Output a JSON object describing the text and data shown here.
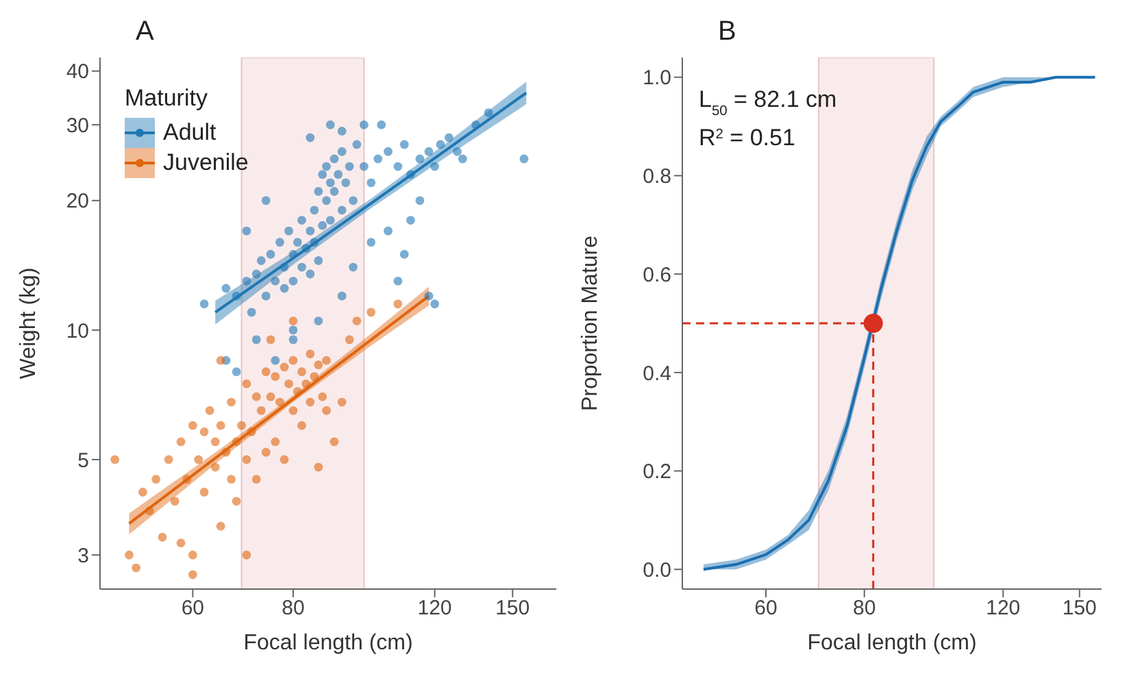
{
  "chart_data": [
    {
      "type": "scatter",
      "title": "A",
      "xlabel": "Focal length (cm)",
      "ylabel": "Weight (kg)",
      "legend_title": "Maturity",
      "legend": "top left",
      "log": "xy",
      "xlim": [
        46,
        170
      ],
      "xticks": [
        60,
        80,
        120,
        150
      ],
      "ylim": [
        2.5,
        43
      ],
      "yticks": [
        3,
        5,
        10,
        20,
        30,
        40
      ],
      "bands": [
        {
          "axis": "x",
          "from": 69,
          "to": 98,
          "color": "#f7e6e6"
        }
      ],
      "series": [
        {
          "name": "Adult",
          "marker": "circle",
          "color": "#1f77b4",
          "x": [
            62,
            66,
            68,
            70,
            71,
            72,
            73,
            74,
            75,
            76,
            77,
            78,
            78,
            79,
            80,
            80,
            81,
            82,
            82,
            83,
            84,
            84,
            85,
            85,
            86,
            86,
            87,
            87,
            88,
            88,
            89,
            89,
            90,
            90,
            91,
            92,
            92,
            93,
            94,
            95,
            96,
            98,
            100,
            102,
            105,
            108,
            110,
            112,
            115,
            118,
            120,
            122,
            125,
            128,
            130,
            135,
            140,
            155,
            72,
            76,
            80,
            86,
            92,
            95,
            100,
            105,
            108,
            110,
            112,
            115,
            118,
            120,
            84,
            92,
            98,
            74,
            70,
            66,
            68,
            80,
            89,
            103
          ],
          "values": [
            11.5,
            12.5,
            12,
            13,
            11,
            13.5,
            14.5,
            12,
            15,
            13,
            16,
            14,
            12.5,
            17,
            15,
            13,
            16,
            14,
            18,
            15.5,
            17,
            13.5,
            16,
            19,
            14.5,
            21,
            17.5,
            23,
            20,
            24,
            22,
            18,
            25,
            21,
            23,
            19,
            26,
            22,
            24,
            20,
            27,
            24,
            22,
            25,
            26,
            24,
            27,
            23,
            25,
            26,
            24,
            27,
            28,
            26,
            25,
            30,
            32,
            25,
            9.5,
            8.5,
            10,
            10.5,
            12,
            14,
            16,
            17,
            13,
            15,
            18,
            20,
            12,
            11.5,
            28,
            29,
            30,
            20,
            17,
            8.5,
            8,
            9.5,
            30,
            30
          ]
        },
        {
          "name": "Juvenile",
          "marker": "circle",
          "color": "#e0650f",
          "x": [
            48,
            50,
            51,
            52,
            53,
            54,
            55,
            56,
            57,
            58,
            58,
            59,
            60,
            60,
            61,
            62,
            62,
            63,
            64,
            64,
            65,
            65,
            66,
            67,
            67,
            68,
            68,
            69,
            70,
            70,
            71,
            72,
            72,
            73,
            74,
            74,
            75,
            76,
            76,
            77,
            78,
            78,
            79,
            80,
            80,
            81,
            82,
            82,
            83,
            84,
            84,
            85,
            86,
            87,
            88,
            88,
            86,
            90,
            92,
            94,
            96,
            100,
            108,
            70,
            60,
            75,
            80,
            65
          ],
          "values": [
            5,
            3,
            2.8,
            4.2,
            3.8,
            4.5,
            3.3,
            5,
            4,
            3.2,
            5.5,
            4.5,
            6,
            3,
            5,
            4.2,
            5.8,
            6.5,
            4.8,
            5.5,
            3.5,
            6,
            5.2,
            4.5,
            6.8,
            5.5,
            4,
            6,
            5,
            7.5,
            5.8,
            4.5,
            7,
            6.5,
            5.2,
            8,
            7,
            5.5,
            7.8,
            6.8,
            8.2,
            5,
            7.5,
            6.5,
            8.5,
            7.2,
            8,
            6,
            7.5,
            8.8,
            6.8,
            7.8,
            8.3,
            7,
            8.5,
            6.5,
            4.8,
            5.5,
            6.8,
            9.5,
            10.5,
            11,
            11.5,
            3,
            2.7,
            9.5,
            10.5,
            8.5
          ]
        },
        {
          "type": "line",
          "color": "#1f77b4",
          "x": [
            64,
            80,
            100,
            125,
            156
          ],
          "values": [
            11,
            14.7,
            19.7,
            26.5,
            35.6
          ],
          "lower": [
            10.3,
            14.2,
            19.2,
            25.5,
            33.5
          ],
          "upper": [
            11.7,
            15.2,
            20.2,
            27.5,
            37.8
          ]
        },
        {
          "type": "line",
          "color": "#e0650f",
          "x": [
            50,
            65,
            80,
            100,
            118
          ],
          "values": [
            3.55,
            5.15,
            6.92,
            9.49,
            12
          ],
          "lower": [
            3.35,
            5,
            6.8,
            9.2,
            11.4
          ],
          "upper": [
            3.75,
            5.3,
            7.05,
            9.8,
            12.6
          ]
        }
      ]
    },
    {
      "type": "line",
      "title": "B",
      "xlabel": "Focal length (cm)",
      "ylabel": "Proportion Mature",
      "log": "x",
      "xlim": [
        47,
        160
      ],
      "xticks": [
        60,
        80,
        120,
        150
      ],
      "ylim": [
        -0.04,
        1.04
      ],
      "yticks": [
        {
          "value": 0,
          "label": "0.0"
        },
        {
          "value": 0.2,
          "label": "0.2"
        },
        {
          "value": 0.4,
          "label": "0.4"
        },
        {
          "value": 0.6,
          "label": "0.6"
        },
        {
          "value": 0.8,
          "label": "0.8"
        },
        {
          "value": 1,
          "label": "1.0"
        }
      ],
      "annotations": [
        "L$_{50}$ = 82.1 cm",
        "R$^{2}$ = 0.51"
      ],
      "bands": [
        {
          "axis": "x",
          "from": 70,
          "to": 98,
          "color": "#f7e6e6"
        }
      ],
      "ref_lines": [
        {
          "axis": "x",
          "value": 82.1,
          "color": "#d7301f",
          "line_style": "dashed"
        },
        {
          "axis": "y",
          "value": 0.5,
          "color": "#d7301f",
          "line_style": "dashed"
        }
      ],
      "series": [
        {
          "color": "#1a6faf",
          "x": [
            50,
            55,
            60,
            64,
            68,
            72,
            76,
            80,
            84,
            88,
            92,
            96,
            100,
            105,
            110,
            120,
            130,
            140,
            157
          ],
          "values": [
            0,
            0.01,
            0.03,
            0.06,
            0.1,
            0.18,
            0.29,
            0.43,
            0.57,
            0.69,
            0.79,
            0.86,
            0.91,
            0.94,
            0.97,
            0.99,
            0.99,
            1,
            1
          ],
          "lower": [
            0,
            0,
            0.02,
            0.05,
            0.08,
            0.16,
            0.27,
            0.41,
            0.55,
            0.67,
            0.77,
            0.84,
            0.9,
            0.93,
            0.96,
            0.98,
            0.99,
            1,
            1
          ],
          "upper": [
            0.01,
            0.02,
            0.04,
            0.07,
            0.12,
            0.2,
            0.31,
            0.45,
            0.59,
            0.71,
            0.81,
            0.88,
            0.92,
            0.95,
            0.98,
            1,
            1,
            1,
            1
          ]
        },
        {
          "type": "scatter",
          "marker": "circle",
          "color": "#d7301f",
          "x": [
            82.1
          ],
          "values": [
            0.5
          ]
        }
      ]
    }
  ]
}
